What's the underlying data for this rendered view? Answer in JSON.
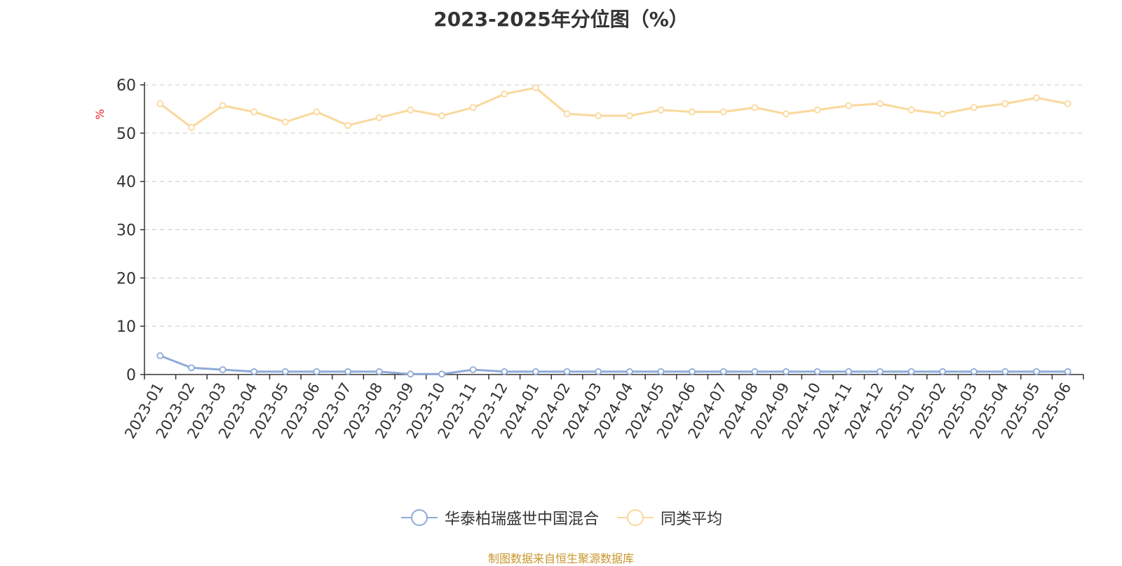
{
  "chart_data": {
    "type": "line",
    "title": "2023-2025年分位图（%）",
    "ylabel": "%",
    "ylim": [
      0,
      60
    ],
    "yticks": [
      0,
      10,
      20,
      30,
      40,
      50,
      60
    ],
    "grid": true,
    "legend_position": "bottom-center",
    "categories": [
      "2023-01",
      "2023-02",
      "2023-03",
      "2023-04",
      "2023-05",
      "2023-06",
      "2023-07",
      "2023-08",
      "2023-09",
      "2023-10",
      "2023-11",
      "2023-12",
      "2024-01",
      "2024-02",
      "2024-03",
      "2024-04",
      "2024-05",
      "2024-06",
      "2024-07",
      "2024-08",
      "2024-09",
      "2024-10",
      "2024-11",
      "2024-12",
      "2025-01",
      "2025-02",
      "2025-03",
      "2025-04",
      "2025-05",
      "2025-06"
    ],
    "series": [
      {
        "name": "华泰柏瑞盛世中国混合",
        "color": "#8eaad8",
        "values": [
          3.9,
          1.4,
          1.0,
          0.6,
          0.6,
          0.6,
          0.6,
          0.6,
          0.1,
          0.1,
          1.0,
          0.6,
          0.6,
          0.6,
          0.6,
          0.6,
          0.6,
          0.6,
          0.6,
          0.6,
          0.6,
          0.6,
          0.6,
          0.6,
          0.6,
          0.6,
          0.6,
          0.6,
          0.6,
          0.6
        ]
      },
      {
        "name": "同类平均",
        "color": "#fad89c",
        "values": [
          56.1,
          51.2,
          55.7,
          54.4,
          52.3,
          54.4,
          51.6,
          53.2,
          54.8,
          53.6,
          55.3,
          58.1,
          59.4,
          54.0,
          53.6,
          53.6,
          54.8,
          54.4,
          54.4,
          55.3,
          54.0,
          54.8,
          55.7,
          56.1,
          54.8,
          54.0,
          55.3,
          56.1,
          57.3,
          56.1
        ]
      }
    ],
    "axis_color": "#333333",
    "label_color": "#333333",
    "ylabel_color": "#e8202a"
  },
  "footer": {
    "source": "制图数据来自恒生聚源数据库"
  }
}
